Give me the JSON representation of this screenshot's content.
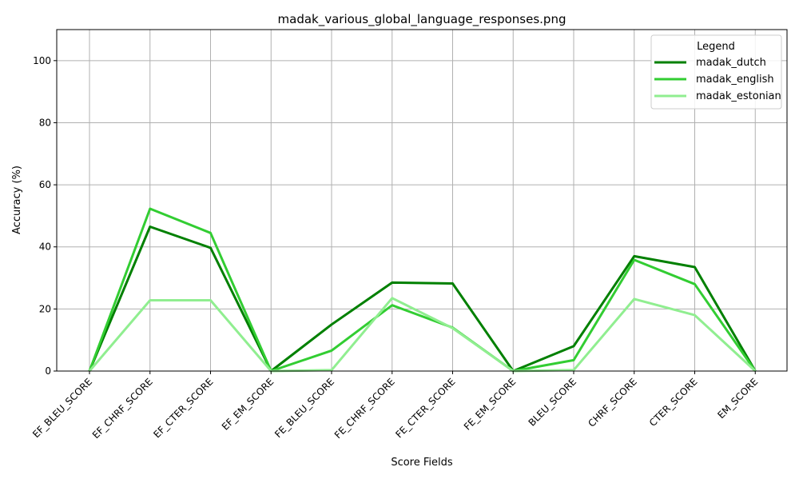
{
  "chart_data": {
    "type": "line",
    "title": "madak_various_global_language_responses.png",
    "xlabel": "Score Fields",
    "ylabel": "Accuracy (%)",
    "ylim": [
      0,
      110
    ],
    "yticks": [
      0,
      20,
      40,
      60,
      80,
      100
    ],
    "grid": true,
    "legend_title": "Legend",
    "legend_position": "top-right",
    "categories": [
      "EF_BLEU_SCORE",
      "EF_CHRF_SCORE",
      "EF_CTER_SCORE",
      "EF_EM_SCORE",
      "FE_BLEU_SCORE",
      "FE_CHRF_SCORE",
      "FE_CTER_SCORE",
      "FE_EM_SCORE",
      "BLEU_SCORE",
      "CHRF_SCORE",
      "CTER_SCORE",
      "EM_SCORE"
    ],
    "series": [
      {
        "name": "madak_dutch",
        "color": "#008000",
        "values": [
          0,
          46.5,
          39.7,
          0,
          15.0,
          28.5,
          28.2,
          0,
          8.0,
          37.0,
          33.5,
          0
        ]
      },
      {
        "name": "madak_english",
        "color": "#32cd32",
        "values": [
          0,
          52.3,
          44.5,
          0,
          6.6,
          21.2,
          14.0,
          0,
          3.5,
          35.8,
          28.0,
          0
        ]
      },
      {
        "name": "madak_estonian",
        "color": "#90ee90",
        "values": [
          0,
          22.8,
          22.8,
          0,
          0.3,
          23.5,
          13.8,
          0,
          0.3,
          23.2,
          18.0,
          0
        ]
      }
    ]
  }
}
